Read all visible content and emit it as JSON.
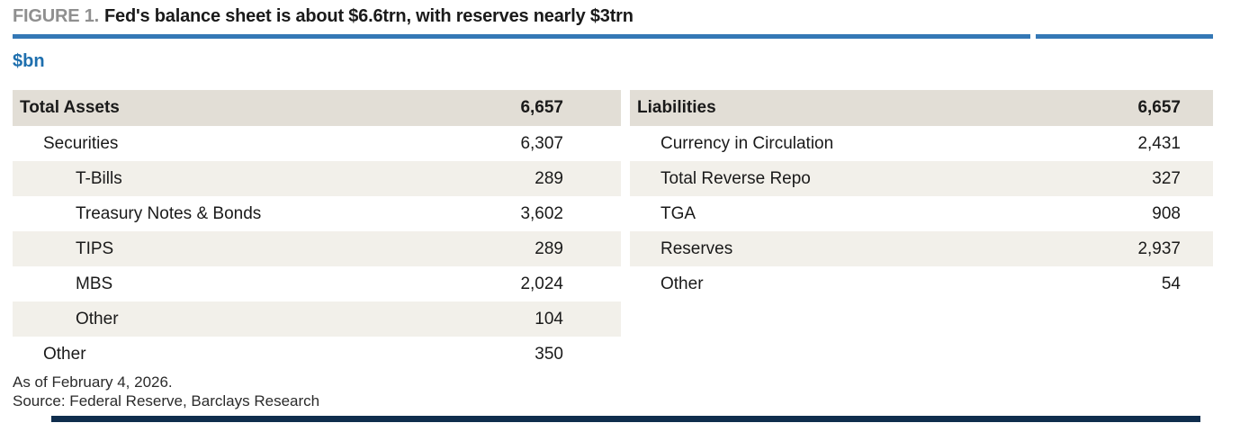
{
  "figure": {
    "label": "FIGURE 1.",
    "title": "Fed's balance sheet is about $6.6trn, with reserves nearly $3trn",
    "unit": "$bn"
  },
  "assets_table": {
    "header": {
      "label": "Total Assets",
      "value": "6,657"
    },
    "rows": [
      {
        "label": "Securities",
        "value": "6,307",
        "indent": 1
      },
      {
        "label": "T-Bills",
        "value": "289",
        "indent": 2
      },
      {
        "label": "Treasury Notes & Bonds",
        "value": "3,602",
        "indent": 2
      },
      {
        "label": "TIPS",
        "value": "289",
        "indent": 2
      },
      {
        "label": "MBS",
        "value": "2,024",
        "indent": 2
      },
      {
        "label": "Other",
        "value": "104",
        "indent": 2
      },
      {
        "label": "Other",
        "value": "350",
        "indent": 1
      }
    ]
  },
  "liabilities_table": {
    "header": {
      "label": "Liabilities",
      "value": "6,657"
    },
    "rows": [
      {
        "label": "Currency in Circulation",
        "value": "2,431",
        "indent": 1
      },
      {
        "label": "Total Reverse Repo",
        "value": "327",
        "indent": 1
      },
      {
        "label": "TGA",
        "value": "908",
        "indent": 1
      },
      {
        "label": "Reserves",
        "value": "2,937",
        "indent": 1
      },
      {
        "label": "Other",
        "value": "54",
        "indent": 1
      }
    ]
  },
  "footnotes": {
    "as_of": "As of February 4, 2026.",
    "source": "Source: Federal Reserve, Barclays Research"
  },
  "colors": {
    "accent_rule_blue": "#3478b6",
    "unit_blue": "#1e6fae",
    "figure_label_gray": "#8f8f8f",
    "header_row_bg": "#e2ded6",
    "stripe_row_bg": "#f2f0ea",
    "text_dark": "#1a1a1a",
    "bottom_rule_navy": "#0f2d4d"
  },
  "chart_data": {
    "type": "table",
    "title": "Fed's balance sheet is about $6.6trn, with reserves nearly $3trn",
    "unit": "$bn",
    "assets": [
      [
        "Total Assets",
        6657
      ],
      [
        "Securities",
        6307
      ],
      [
        "T-Bills",
        289
      ],
      [
        "Treasury Notes & Bonds",
        3602
      ],
      [
        "TIPS",
        289
      ],
      [
        "MBS",
        2024
      ],
      [
        "Other (securities)",
        104
      ],
      [
        "Other",
        350
      ]
    ],
    "liabilities": [
      [
        "Liabilities",
        6657
      ],
      [
        "Currency in Circulation",
        2431
      ],
      [
        "Total Reverse Repo",
        327
      ],
      [
        "TGA",
        908
      ],
      [
        "Reserves",
        2937
      ],
      [
        "Other",
        54
      ]
    ],
    "as_of": "As of February 4, 2026.",
    "source": "Source: Federal Reserve, Barclays Research"
  }
}
